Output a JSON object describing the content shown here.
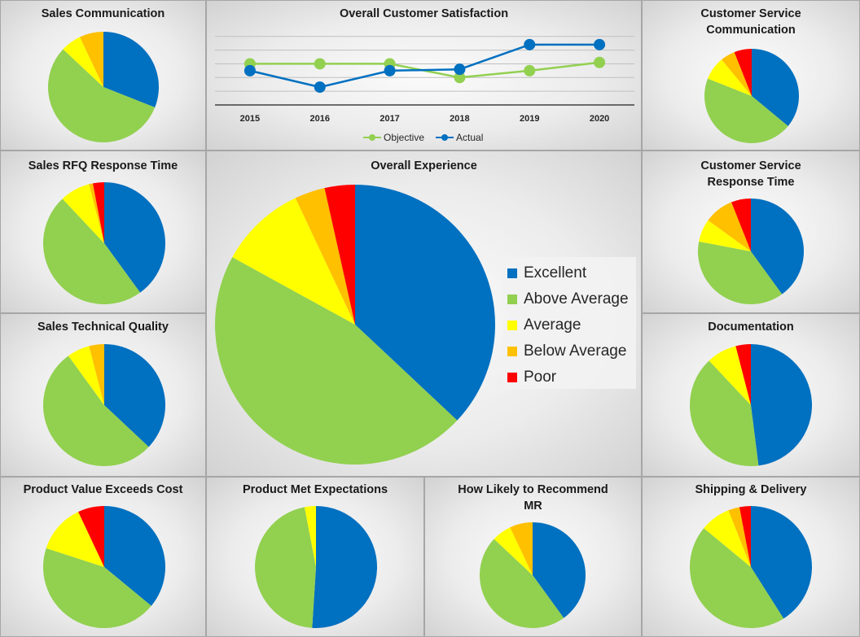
{
  "colors": {
    "excellent": "#0070C0",
    "above_average": "#92D050",
    "average": "#FFFF00",
    "below_average": "#FFC000",
    "poor": "#FF0000",
    "objective_line": "#92D050",
    "actual_line": "#0070C0"
  },
  "chart_data": [
    {
      "type": "line",
      "title": "Overall Customer Satisfaction",
      "categories": [
        "2015",
        "2016",
        "2017",
        "2018",
        "2019",
        "2020"
      ],
      "series": [
        {
          "name": "Objective",
          "values": [
            4.0,
            4.0,
            4.0,
            3.5,
            3.75,
            4.05
          ]
        },
        {
          "name": "Actual",
          "values": [
            3.75,
            3.15,
            3.75,
            3.8,
            4.7,
            4.7
          ]
        }
      ],
      "ylim": [
        2.5,
        5.2
      ],
      "gridlines": [
        3.0,
        3.5,
        4.0,
        4.5,
        5.0
      ],
      "legend": "bottom"
    },
    {
      "type": "pie",
      "title": "Overall Experience",
      "categories": [
        "Excellent",
        "Above Average",
        "Average",
        "Below Average",
        "Poor"
      ],
      "values": [
        37,
        46,
        10,
        3.5,
        3.5
      ],
      "legend": "right"
    },
    {
      "type": "pie",
      "title": "Sales Communication",
      "categories": [
        "Excellent",
        "Above Average",
        "Average",
        "Below Average",
        "Poor"
      ],
      "values": [
        31,
        56,
        6,
        7,
        0
      ]
    },
    {
      "type": "pie",
      "title": "Customer Service Communication",
      "categories": [
        "Excellent",
        "Above Average",
        "Average",
        "Below Average",
        "Poor"
      ],
      "values": [
        36,
        45,
        8,
        5,
        6
      ]
    },
    {
      "type": "pie",
      "title": "Sales RFQ Response Time",
      "categories": [
        "Excellent",
        "Above Average",
        "Average",
        "Below Average",
        "Poor"
      ],
      "values": [
        40,
        48,
        8,
        1,
        3
      ]
    },
    {
      "type": "pie",
      "title": "Customer Service Response Time",
      "categories": [
        "Excellent",
        "Above Average",
        "Average",
        "Below Average",
        "Poor"
      ],
      "values": [
        40,
        38,
        7,
        9,
        6
      ]
    },
    {
      "type": "pie",
      "title": "Sales Technical Quality",
      "categories": [
        "Excellent",
        "Above Average",
        "Average",
        "Below Average",
        "Poor"
      ],
      "values": [
        37,
        53,
        6,
        4,
        0
      ]
    },
    {
      "type": "pie",
      "title": "Documentation",
      "categories": [
        "Excellent",
        "Above Average",
        "Average",
        "Below Average",
        "Poor"
      ],
      "values": [
        48,
        40,
        8,
        0,
        4
      ]
    },
    {
      "type": "pie",
      "title": "Product Value Exceeds Cost",
      "categories": [
        "Excellent",
        "Above Average",
        "Average",
        "Below Average",
        "Poor"
      ],
      "values": [
        36,
        44,
        13,
        0,
        7
      ]
    },
    {
      "type": "pie",
      "title": "Product Met Expectations",
      "categories": [
        "Excellent",
        "Above Average",
        "Average",
        "Below Average",
        "Poor"
      ],
      "values": [
        51,
        46,
        3,
        0,
        0
      ]
    },
    {
      "type": "pie",
      "title": "How Likely to Recommend MR",
      "categories": [
        "Excellent",
        "Above Average",
        "Average",
        "Below Average",
        "Poor"
      ],
      "values": [
        40,
        47,
        6,
        7,
        0
      ]
    },
    {
      "type": "pie",
      "title": "Shipping & Delivery",
      "categories": [
        "Excellent",
        "Above Average",
        "Average",
        "Below Average",
        "Poor"
      ],
      "values": [
        41,
        45,
        8,
        3,
        3
      ]
    }
  ]
}
